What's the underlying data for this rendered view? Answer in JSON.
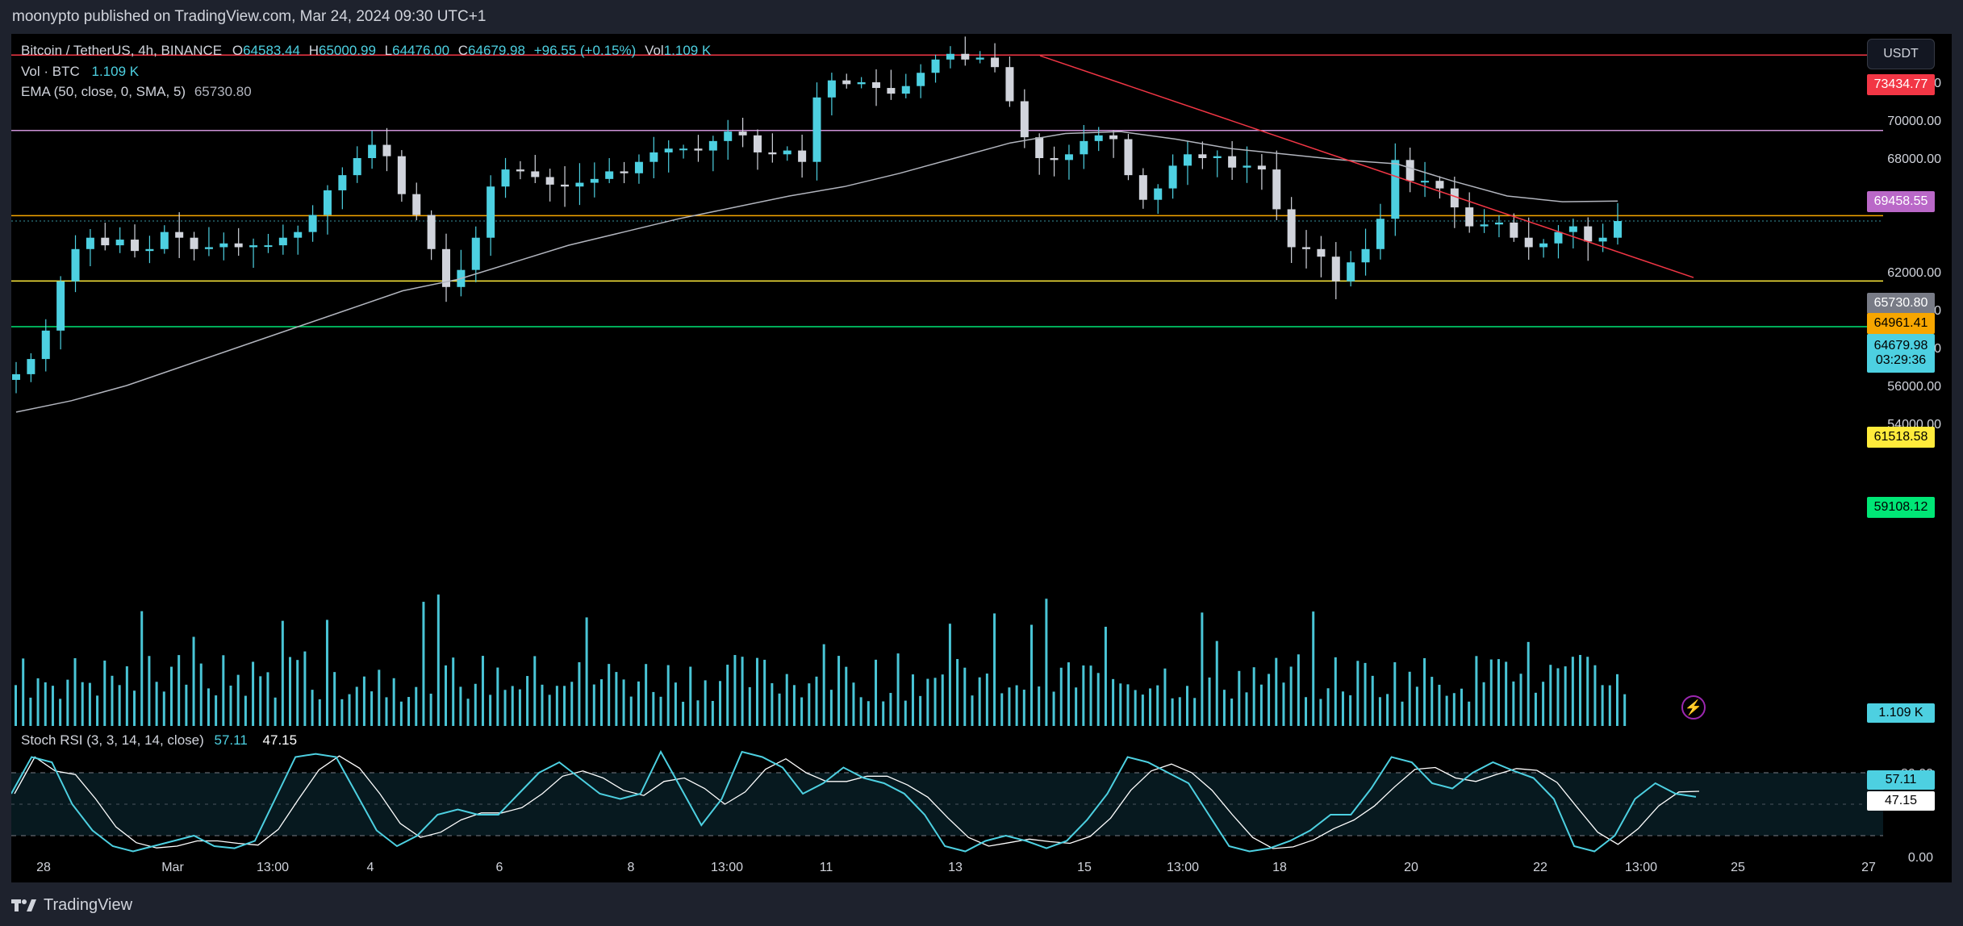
{
  "header": {
    "publisher": "moonypto published on TradingView.com, Mar 24, 2024 09:30 UTC+1"
  },
  "legend": {
    "symbol": "Bitcoin / TetherUS, 4h, BINANCE",
    "open_label": "O",
    "open": "64583.44",
    "high_label": "H",
    "high": "65000.99",
    "low_label": "L",
    "low": "64476.00",
    "close_label": "C",
    "close": "64679.98",
    "change": "+96.55 (+0.15%)",
    "vol_label": "Vol",
    "vol": "1.109 K",
    "vol_series": "Vol · BTC",
    "vol_series_value": "1.109 K",
    "ema_label": "EMA (50, close, 0, SMA, 5)",
    "ema_value": "65730.80",
    "stoch_label": "Stoch RSI (3, 3, 14, 14, close)",
    "stoch_k": "57.11",
    "stoch_d": "47.15"
  },
  "currency_button": "USDT",
  "price_axis": {
    "ticks": [
      "72000.00",
      "70000.00",
      "68000.00",
      "62000.00",
      "60000.00",
      "58000.00",
      "56000.00",
      "54000.00"
    ],
    "tags": {
      "level_73434": "73434.77",
      "level_69458": "69458.55",
      "ema": "65730.80",
      "level_64961": "64961.41",
      "last_price": "64679.98",
      "countdown": "03:29:36",
      "level_61518": "61518.58",
      "level_59108": "59108.12",
      "volume": "1.109 K"
    }
  },
  "stoch_axis": {
    "ticks": [
      "80.00",
      "0.00"
    ],
    "k_tag": "57.11",
    "d_tag": "47.15"
  },
  "time_axis": [
    "28",
    "Mar",
    "13:00",
    "4",
    "6",
    "8",
    "13:00",
    "11",
    "13",
    "15",
    "13:00",
    "18",
    "20",
    "22",
    "13:00",
    "25",
    "27"
  ],
  "colors": {
    "bull": "#4dd0e1",
    "bear": "#d1d4dc",
    "level_red": "#f23645",
    "level_purple": "#ce93d8",
    "level_orange": "#f7a600",
    "level_yellow": "#ffeb3b",
    "level_green": "#00e676",
    "ema": "#b2b5be",
    "stoch_k": "#4dd0e1",
    "stoch_d": "#ffffff",
    "trendline": "#f23645"
  },
  "footer": {
    "brand": "TradingView",
    "logo_icon": "tradingview-logo-icon"
  },
  "icons": {
    "bolt": "lightning-bolt-icon"
  },
  "chart_data": {
    "type": "candlestick",
    "timeframe": "4h",
    "symbol": "BTCUSDT",
    "y_range": [
      53500,
      73800
    ],
    "x_range": [
      "Feb 28",
      "Mar 27"
    ],
    "horizontal_levels": [
      73434.77,
      69458.55,
      64961.41,
      61518.58,
      59108.12
    ],
    "trendline": [
      [
        72900,
        "Mar 14"
      ],
      [
        61900,
        "Mar 23"
      ]
    ],
    "candles_close_approx": [
      56600,
      57400,
      58900,
      61500,
      63200,
      63800,
      63400,
      63700,
      63100,
      63200,
      64100,
      63800,
      63200,
      63300,
      63500,
      63300,
      63400,
      63400,
      63800,
      64100,
      65000,
      66300,
      67100,
      68000,
      68700,
      68100,
      66100,
      65000,
      63200,
      61200,
      62100,
      63800,
      66500,
      67400,
      67300,
      67000,
      66600,
      66500,
      66700,
      66900,
      67300,
      67200,
      67800,
      68300,
      68500,
      68500,
      68400,
      68900,
      69400,
      69200,
      68300,
      68200,
      68400,
      67800,
      71200,
      72100,
      71900,
      72000,
      71700,
      71400,
      71800,
      72500,
      73200,
      73500,
      73200,
      73300,
      72800,
      71000,
      69100,
      68000,
      67900,
      68200,
      68900,
      69200,
      69000,
      67100,
      65800,
      66400,
      67600,
      68200,
      68000,
      68100,
      67500,
      67600,
      67400,
      65300,
      63300,
      63200,
      62800,
      61500,
      62500,
      63200,
      64800,
      67900,
      66800,
      66800,
      66400,
      65400,
      64400,
      64500,
      64600,
      63800,
      63300,
      63500,
      64100,
      64400,
      63600,
      63800,
      64680
    ],
    "ema50_path_approx": [
      54600,
      55200,
      56000,
      57000,
      58000,
      59000,
      60000,
      61000,
      61600,
      62500,
      63400,
      64100,
      64800,
      65400,
      66000,
      66500,
      67200,
      68000,
      68800,
      69300,
      69400,
      69000,
      68500,
      68200,
      67900,
      67700,
      66800,
      66000,
      65700,
      65730
    ],
    "stoch_rsi": {
      "k_last": 57.11,
      "d_last": 47.15,
      "upper": 80,
      "lower": 20
    }
  }
}
